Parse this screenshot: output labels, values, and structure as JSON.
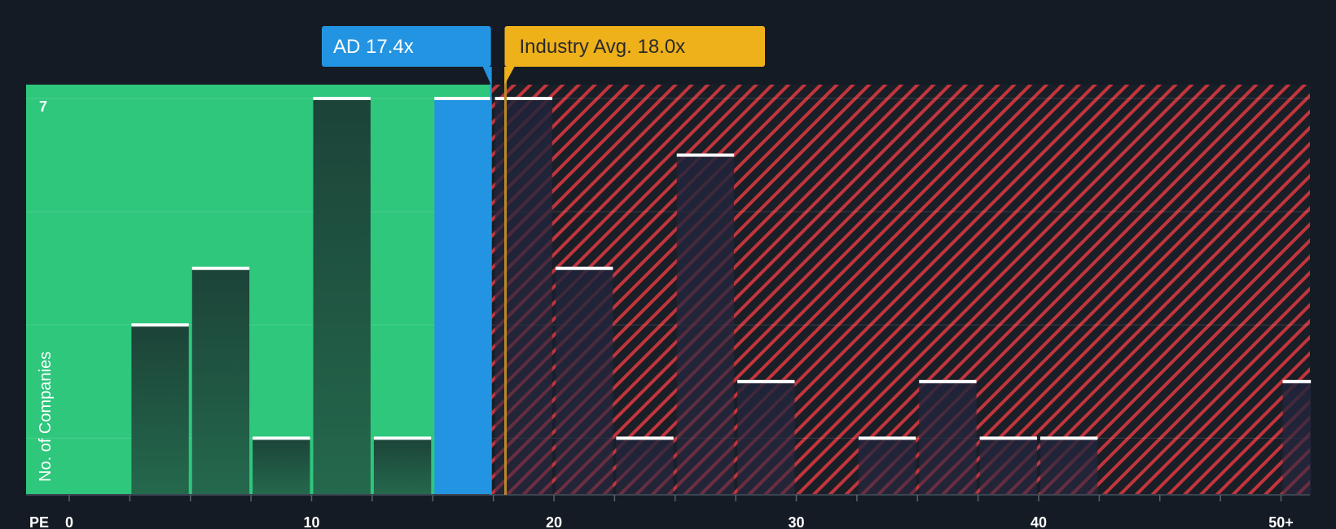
{
  "chart_data": {
    "type": "bar",
    "xlabel": "PE",
    "ylabel": "No. of Companies",
    "x_ticks": [
      "0",
      "10",
      "20",
      "30",
      "40",
      "50+"
    ],
    "x_tick_values": [
      0,
      10,
      20,
      30,
      40,
      50
    ],
    "xlim": [
      0,
      51.3
    ],
    "ylim": [
      0,
      7.25
    ],
    "y_ticks_labeled": [
      "7"
    ],
    "y_tick_value": 7,
    "bin_width": 2.5,
    "bins": [
      {
        "start": 2.5,
        "end": 5.0,
        "value": 3
      },
      {
        "start": 5.0,
        "end": 7.5,
        "value": 4
      },
      {
        "start": 7.5,
        "end": 10.0,
        "value": 1
      },
      {
        "start": 10.0,
        "end": 12.5,
        "value": 7
      },
      {
        "start": 12.5,
        "end": 15.0,
        "value": 1
      },
      {
        "start": 15.0,
        "end": 17.5,
        "value": 7,
        "highlight": true
      },
      {
        "start": 17.5,
        "end": 20.0,
        "value": 7
      },
      {
        "start": 20.0,
        "end": 22.5,
        "value": 4
      },
      {
        "start": 22.5,
        "end": 25.0,
        "value": 1
      },
      {
        "start": 25.0,
        "end": 27.5,
        "value": 6
      },
      {
        "start": 27.5,
        "end": 30.0,
        "value": 2
      },
      {
        "start": 32.5,
        "end": 35.0,
        "value": 1
      },
      {
        "start": 35.0,
        "end": 37.5,
        "value": 2
      },
      {
        "start": 37.5,
        "end": 40.0,
        "value": 1
      },
      {
        "start": 40.0,
        "end": 42.5,
        "value": 1
      },
      {
        "start": 50.0,
        "end": 51.3,
        "value": 2
      }
    ],
    "company": {
      "label": "AD 17.4x",
      "value": 17.4
    },
    "industry_avg": {
      "label": "Industry Avg. 18.0x",
      "value": 18.0
    },
    "fair_region_end": 17.4,
    "colors": {
      "background": "#151b24",
      "fair_region": "#2ec77c",
      "expensive_region": "#b8333a",
      "bar_dark": "#1f4d40",
      "bar_highlight": "#2394e1",
      "bar_top": "#ffffff",
      "company_callout": "#2394e1",
      "industry_callout": "#eeb11a"
    }
  }
}
